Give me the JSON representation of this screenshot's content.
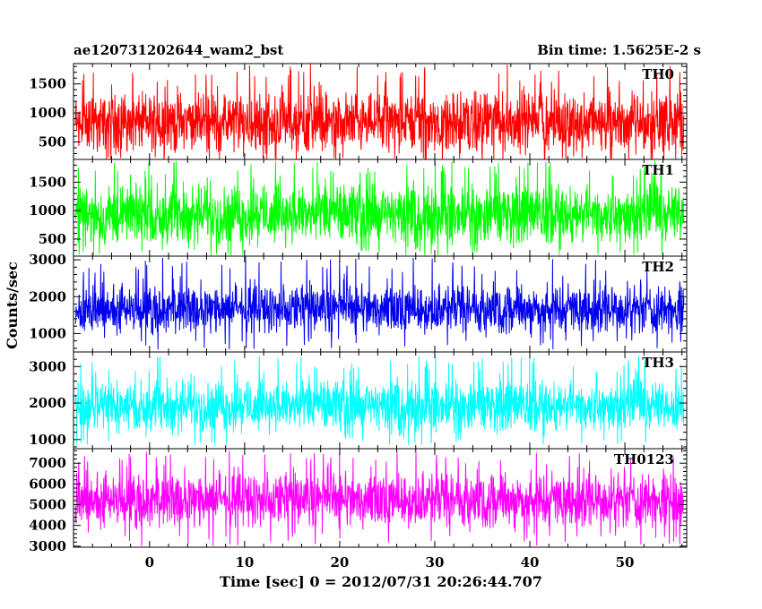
{
  "chart_data": {
    "type": "line",
    "title_left": "ae120731202644_wam2_bst",
    "title_right": "Bin time: 1.5625E-2 s",
    "xlabel": "Time [sec] 0 = 2012/07/31 20:26:44.707",
    "ylabel": "Counts/sec",
    "xlim": [
      -8,
      56.5
    ],
    "data_x_range": [
      -7.8,
      56.2
    ],
    "xticks": [
      "0",
      "10",
      "20",
      "30",
      "40",
      "50"
    ],
    "grid": false,
    "panels": [
      {
        "name": "TH0",
        "color": "#ff0000",
        "ylim": [
          200,
          1850
        ],
        "yticks": [
          "500",
          "1000",
          "1500"
        ],
        "typical_range": [
          230,
          1450
        ],
        "spike_max": 1850,
        "spike_min": 160
      },
      {
        "name": "TH1",
        "color": "#00ff00",
        "ylim": [
          200,
          1900
        ],
        "yticks": [
          "500",
          "1000",
          "1500"
        ],
        "typical_range": [
          320,
          1550
        ],
        "spike_max": 1880,
        "spike_min": 200
      },
      {
        "name": "TH2",
        "color": "#0000ee",
        "ylim": [
          500,
          3100
        ],
        "yticks": [
          "1000",
          "2000",
          "3000"
        ],
        "typical_range": [
          900,
          2450
        ],
        "spike_max": 3100,
        "spike_min": 560
      },
      {
        "name": "TH3",
        "color": "#00ffff",
        "ylim": [
          750,
          3400
        ],
        "yticks": [
          "1000",
          "2000",
          "3000"
        ],
        "typical_range": [
          1100,
          2750
        ],
        "spike_max": 3300,
        "spike_min": 820
      },
      {
        "name": "TH0123",
        "color": "#ff00ff",
        "ylim": [
          2950,
          7700
        ],
        "yticks": [
          "3000",
          "4000",
          "5000",
          "6000",
          "7000"
        ],
        "typical_range": [
          3700,
          6800
        ],
        "spike_max": 7600,
        "spike_min": 3000
      }
    ]
  }
}
